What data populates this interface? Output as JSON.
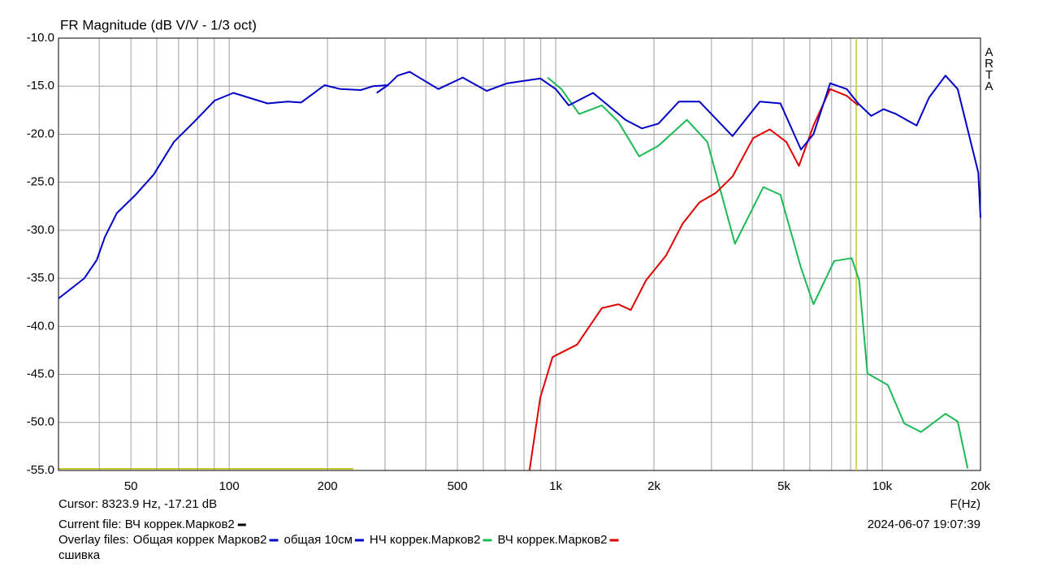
{
  "chart_data": {
    "type": "line",
    "title": "FR Magnitude (dB V/V - 1/3 oct)",
    "brand": "ARTA",
    "x_label": "F(Hz)",
    "log_x": true,
    "grid": true,
    "xlim": [
      30,
      20000
    ],
    "ylim": [
      -55,
      -10
    ],
    "xticks": [
      50,
      100,
      200,
      500,
      {
        "value": 1000,
        "label": "1k"
      },
      {
        "value": 2000,
        "label": "2k"
      },
      {
        "value": 5000,
        "label": "5k"
      },
      {
        "value": 10000,
        "label": "10k"
      },
      {
        "value": 20000,
        "label": "20k"
      }
    ],
    "x_minor_ticks": [
      40,
      60,
      70,
      80,
      90,
      300,
      400,
      600,
      700,
      800,
      900,
      3000,
      4000,
      6000,
      7000,
      8000,
      9000
    ],
    "yticks": [
      {
        "value": -10,
        "label": "-10.0"
      },
      {
        "value": -15,
        "label": "-15.0"
      },
      {
        "value": -20,
        "label": "-20.0"
      },
      {
        "value": -25,
        "label": "-25.0"
      },
      {
        "value": -30,
        "label": "-30.0"
      },
      {
        "value": -35,
        "label": "-35.0"
      },
      {
        "value": -40,
        "label": "-40.0"
      },
      {
        "value": -45,
        "label": "-45.0"
      },
      {
        "value": -50,
        "label": "-50.0"
      },
      {
        "value": -55,
        "label": "-55.0"
      }
    ],
    "cursor": {
      "x": 8323.9,
      "label": "Cursor: 8323.9 Hz, -17.21 dB",
      "color": "#c8c832"
    },
    "current_file": "Current file: ВЧ коррек.Марков2",
    "current_file_color": "#000000",
    "timestamp": "2024-06-07  19:07:39",
    "overlay_label": "Overlay files:",
    "overlay_last": "сшивка",
    "series": [
      {
        "name": "Общая коррек Марков2",
        "color": "#0000c8",
        "x": [
          30,
          36,
          39.3,
          41.6,
          45.3,
          51.7,
          58.7,
          67.7,
          78.2,
          90.2,
          103,
          131,
          151,
          166,
          196,
          219,
          253,
          276,
          306,
          328,
          357,
          437,
          519,
          615,
          710,
          897,
          1000,
          1096,
          1301,
          1635,
          1836,
          2063,
          2385,
          2755,
          3479,
          4220,
          4878,
          5638,
          6158,
          6926,
          7784,
          8439,
          9251,
          10100,
          11030,
          12740,
          13910,
          15620,
          17030,
          19690,
          20000
        ],
        "values": [
          -37.1,
          -35.0,
          -33.1,
          -30.7,
          -28.2,
          -26.3,
          -24.2,
          -20.8,
          -18.7,
          -16.5,
          -15.7,
          -16.8,
          -16.6,
          -16.7,
          -14.9,
          -15.3,
          -15.4,
          -15.0,
          -14.9,
          -13.9,
          -13.5,
          -15.3,
          -14.1,
          -15.5,
          -14.7,
          -14.2,
          -15.3,
          -17.0,
          -15.7,
          -18.5,
          -19.4,
          -18.9,
          -16.6,
          -16.6,
          -20.2,
          -16.6,
          -16.8,
          -21.6,
          -20.0,
          -14.7,
          -15.3,
          -16.8,
          -18.1,
          -17.4,
          -17.9,
          -19.1,
          -16.2,
          -13.9,
          -15.3,
          -24.0,
          -28.7
        ]
      },
      {
        "name": "общая 10см",
        "color": "#0000c8",
        "x": [
          283,
          306
        ],
        "values": [
          -15.7,
          -14.9
        ]
      },
      {
        "name": "НЧ коррек.Марков2",
        "color": "#1db954",
        "x": [
          945,
          1041,
          1180,
          1385,
          1555,
          1800,
          2063,
          2521,
          2913,
          3540,
          4326,
          4878,
          5638,
          6158,
          7125,
          8062,
          8498,
          9010,
          10400,
          11680,
          13150,
          15620,
          17030,
          18270
        ],
        "values": [
          -14.1,
          -15.3,
          -17.9,
          -17.0,
          -18.7,
          -22.3,
          -21.2,
          -18.5,
          -20.8,
          -31.4,
          -25.5,
          -26.3,
          -33.9,
          -37.7,
          -33.2,
          -32.9,
          -35.2,
          -44.9,
          -46.1,
          -50.1,
          -51.0,
          -49.1,
          -49.9,
          -54.8
        ]
      },
      {
        "name": "ВЧ коррек.Марков2",
        "color": "#e00000",
        "x": [
          831,
          897,
          978,
          1163,
          1385,
          1555,
          1698,
          1891,
          2180,
          2448,
          2755,
          3095,
          3479,
          4027,
          4524,
          5083,
          5558,
          6158,
          6926,
          7784,
          8439
        ],
        "values": [
          -55.0,
          -47.4,
          -43.2,
          -41.9,
          -38.1,
          -37.7,
          -38.3,
          -35.2,
          -32.6,
          -29.3,
          -27.1,
          -26.1,
          -24.4,
          -20.4,
          -19.5,
          -20.8,
          -23.3,
          -19.1,
          -15.3,
          -16.0,
          -17.0
        ]
      }
    ]
  }
}
